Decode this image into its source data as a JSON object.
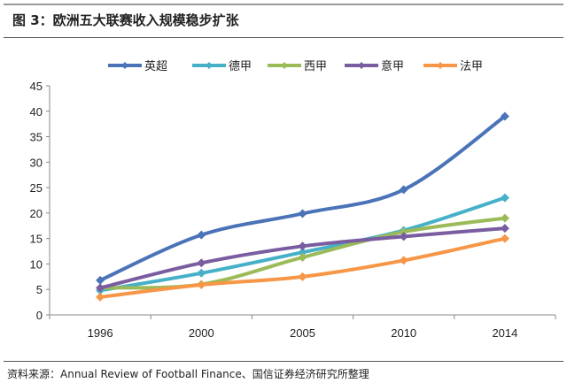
{
  "header": {
    "title": "图 3：欧洲五大联赛收入规模稳步扩张"
  },
  "footer": {
    "source": "资料来源：Annual Review of Football Finance、国信证券经济研究所整理"
  },
  "chart_data": {
    "type": "line",
    "categories": [
      "1996",
      "2000",
      "2005",
      "2010",
      "2014"
    ],
    "ylim": [
      0,
      45
    ],
    "yticks": [
      "0",
      "5",
      "10",
      "15",
      "20",
      "25",
      "30",
      "35",
      "40",
      "45"
    ],
    "legend_position": "top",
    "grid": false,
    "series": [
      {
        "name": "英超",
        "color": "#4a73b8",
        "values": [
          6.8,
          15.7,
          19.9,
          24.6,
          39
        ]
      },
      {
        "name": "德甲",
        "color": "#45b0c8",
        "values": [
          4.8,
          8.2,
          12.3,
          16.6,
          23
        ]
      },
      {
        "name": "西甲",
        "color": "#9bbb59",
        "values": [
          5.3,
          6.0,
          11.3,
          16.3,
          19
        ]
      },
      {
        "name": "意甲",
        "color": "#7a5ca0",
        "values": [
          5.3,
          10.2,
          13.5,
          15.4,
          17
        ]
      },
      {
        "name": "法甲",
        "color": "#f79646",
        "values": [
          3.5,
          5.9,
          7.5,
          10.7,
          15
        ]
      }
    ]
  }
}
